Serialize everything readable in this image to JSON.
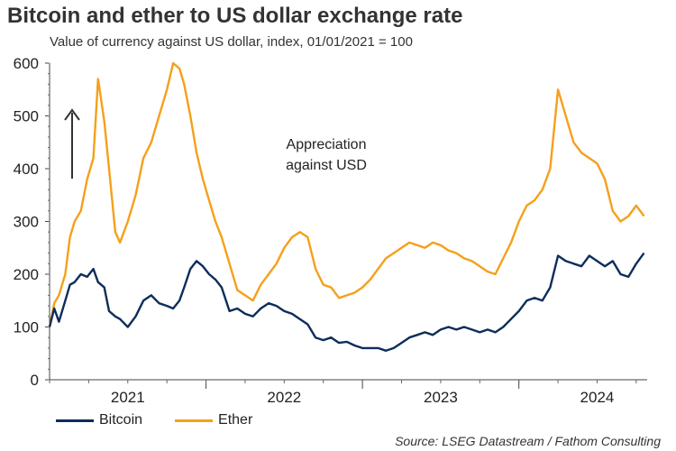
{
  "chart_data": {
    "type": "line",
    "title": "Bitcoin and ether to US dollar exchange rate",
    "subtitle": "Value of currency against US dollar, index, 01/01/2021 = 100",
    "ylabel": "",
    "xlabel": "",
    "ylim": [
      0,
      600
    ],
    "yticks": [
      "0",
      "100",
      "200",
      "300",
      "400",
      "500",
      "600"
    ],
    "xlim": [
      2021.0,
      2024.82
    ],
    "xtick_labels": [
      "2021",
      "2022",
      "2023",
      "2024"
    ],
    "grid": false,
    "legend_position": "bottom-left",
    "annotation": {
      "line1": "Appreciation",
      "line2": "against USD",
      "arrow": "up"
    },
    "series": [
      {
        "name": "Bitcoin",
        "color": "#0d2d5a",
        "x": [
          2021.0,
          2021.03,
          2021.06,
          2021.1,
          2021.13,
          2021.16,
          2021.2,
          2021.24,
          2021.28,
          2021.31,
          2021.35,
          2021.38,
          2021.42,
          2021.45,
          2021.5,
          2021.55,
          2021.6,
          2021.65,
          2021.7,
          2021.75,
          2021.79,
          2021.83,
          2021.86,
          2021.9,
          2021.94,
          2021.98,
          2022.02,
          2022.06,
          2022.1,
          2022.15,
          2022.2,
          2022.25,
          2022.3,
          2022.35,
          2022.4,
          2022.45,
          2022.5,
          2022.55,
          2022.6,
          2022.65,
          2022.7,
          2022.75,
          2022.8,
          2022.85,
          2022.9,
          2022.95,
          2023.0,
          2023.05,
          2023.1,
          2023.15,
          2023.2,
          2023.25,
          2023.3,
          2023.35,
          2023.4,
          2023.45,
          2023.5,
          2023.55,
          2023.6,
          2023.65,
          2023.7,
          2023.75,
          2023.8,
          2023.85,
          2023.9,
          2023.95,
          2024.0,
          2024.05,
          2024.1,
          2024.15,
          2024.2,
          2024.25,
          2024.3,
          2024.35,
          2024.4,
          2024.45,
          2024.5,
          2024.55,
          2024.6,
          2024.65,
          2024.7,
          2024.75,
          2024.8
        ],
        "values": [
          100,
          135,
          110,
          150,
          180,
          185,
          200,
          195,
          210,
          185,
          175,
          130,
          120,
          115,
          100,
          120,
          150,
          160,
          145,
          140,
          135,
          150,
          175,
          210,
          225,
          215,
          200,
          190,
          175,
          130,
          135,
          125,
          120,
          135,
          145,
          140,
          130,
          125,
          115,
          105,
          80,
          75,
          80,
          70,
          72,
          65,
          60,
          60,
          60,
          55,
          60,
          70,
          80,
          85,
          90,
          85,
          95,
          100,
          95,
          100,
          95,
          90,
          95,
          90,
          100,
          115,
          130,
          150,
          155,
          150,
          175,
          235,
          225,
          220,
          215,
          235,
          225,
          215,
          225,
          200,
          195,
          220,
          240
        ]
      },
      {
        "name": "Ether",
        "color": "#f5a01a",
        "x": [
          2021.0,
          2021.03,
          2021.06,
          2021.1,
          2021.13,
          2021.16,
          2021.2,
          2021.24,
          2021.28,
          2021.31,
          2021.35,
          2021.38,
          2021.42,
          2021.45,
          2021.5,
          2021.55,
          2021.6,
          2021.65,
          2021.7,
          2021.75,
          2021.79,
          2021.83,
          2021.86,
          2021.9,
          2021.94,
          2021.98,
          2022.02,
          2022.06,
          2022.1,
          2022.15,
          2022.2,
          2022.25,
          2022.3,
          2022.35,
          2022.4,
          2022.45,
          2022.5,
          2022.55,
          2022.6,
          2022.65,
          2022.7,
          2022.75,
          2022.8,
          2022.85,
          2022.9,
          2022.95,
          2023.0,
          2023.05,
          2023.1,
          2023.15,
          2023.2,
          2023.25,
          2023.3,
          2023.35,
          2023.4,
          2023.45,
          2023.5,
          2023.55,
          2023.6,
          2023.65,
          2023.7,
          2023.75,
          2023.8,
          2023.85,
          2023.9,
          2023.95,
          2024.0,
          2024.05,
          2024.1,
          2024.15,
          2024.2,
          2024.25,
          2024.3,
          2024.35,
          2024.4,
          2024.45,
          2024.5,
          2024.55,
          2024.6,
          2024.65,
          2024.7,
          2024.75,
          2024.8
        ],
        "values": [
          100,
          145,
          160,
          200,
          270,
          300,
          320,
          380,
          420,
          570,
          490,
          400,
          280,
          260,
          300,
          350,
          420,
          450,
          500,
          550,
          610,
          590,
          560,
          500,
          430,
          380,
          340,
          300,
          270,
          220,
          170,
          160,
          150,
          180,
          200,
          220,
          250,
          270,
          280,
          270,
          210,
          180,
          175,
          155,
          160,
          165,
          175,
          190,
          210,
          230,
          240,
          250,
          260,
          255,
          250,
          260,
          255,
          245,
          240,
          230,
          225,
          215,
          205,
          200,
          230,
          260,
          300,
          330,
          340,
          360,
          400,
          550,
          500,
          450,
          430,
          420,
          410,
          380,
          320,
          300,
          310,
          330,
          310
        ]
      }
    ]
  },
  "source": "Source: LSEG Datastream / Fathom Consulting"
}
